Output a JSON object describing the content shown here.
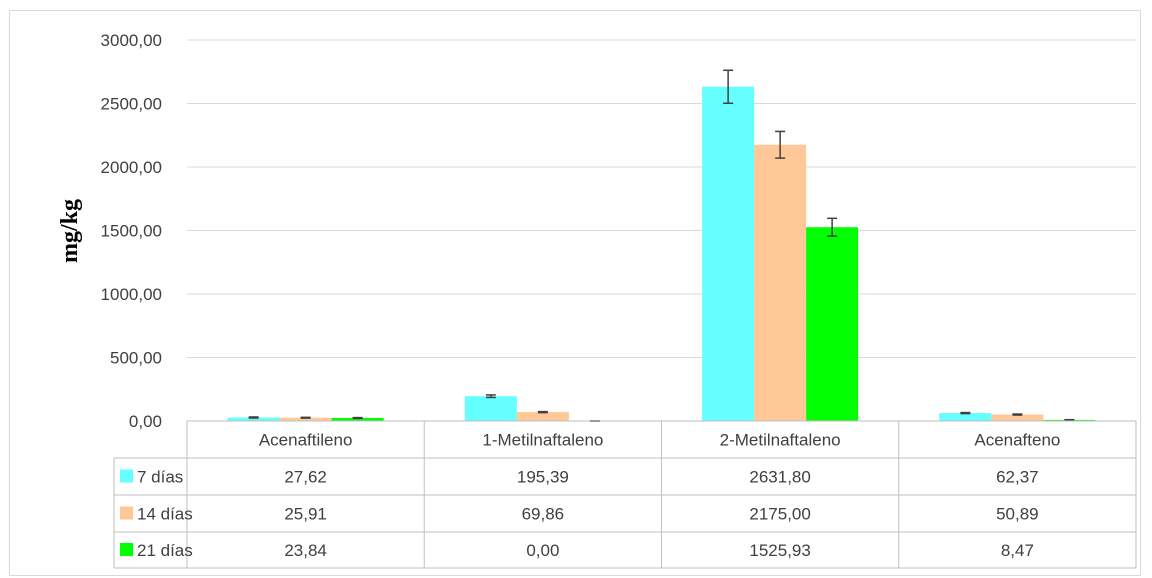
{
  "chart_data": {
    "type": "bar",
    "ylabel": "mg/kg",
    "ylim": [
      0,
      3000
    ],
    "yticks": [
      "0,00",
      "500,00",
      "1000,00",
      "1500,00",
      "2000,00",
      "2500,00",
      "3000,00"
    ],
    "grid": true,
    "legend": "data-table",
    "categories": [
      "Acenaftileno",
      "1-Metilnaftaleno",
      "2-Metilnaftaleno",
      "Acenafteno"
    ],
    "series": [
      {
        "name": "7 días",
        "color": "#66ffff",
        "values": [
          27.62,
          195.39,
          2631.8,
          62.37
        ],
        "labels": [
          "27,62",
          "195,39",
          "2631,80",
          "62,37"
        ],
        "errors": [
          4,
          10,
          130,
          4
        ]
      },
      {
        "name": "14 días",
        "color": "#ffc896",
        "values": [
          25.91,
          69.86,
          2175.0,
          50.89
        ],
        "labels": [
          "25,91",
          "69,86",
          "2175,00",
          "50,89"
        ],
        "errors": [
          3,
          4,
          105,
          4
        ]
      },
      {
        "name": "21 días",
        "color": "#00ff00",
        "values": [
          23.84,
          0.0,
          1525.93,
          8.47
        ],
        "labels": [
          "23,84",
          "0,00",
          "1525,93",
          "8,47"
        ],
        "errors": [
          3,
          0,
          70,
          2
        ]
      }
    ]
  }
}
